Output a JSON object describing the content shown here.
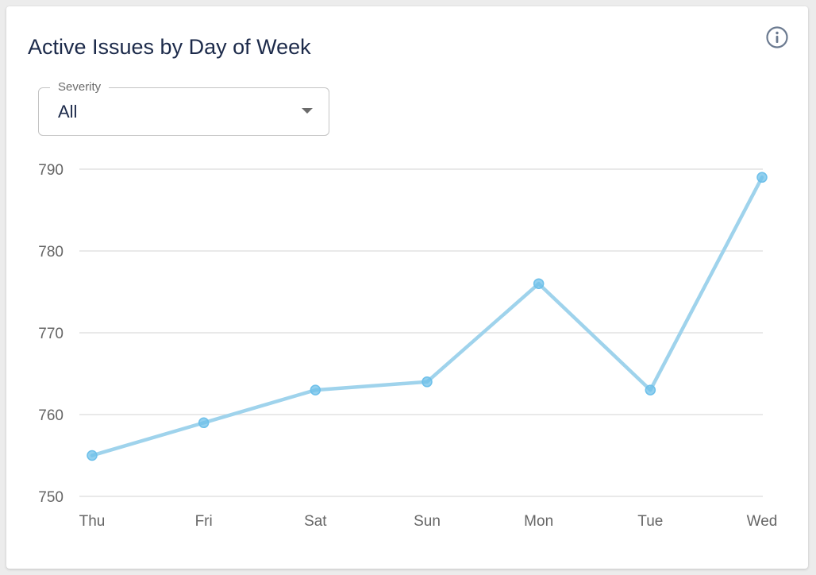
{
  "card": {
    "title": "Active Issues by Day of Week",
    "info_icon": "info-icon"
  },
  "filter": {
    "label": "Severity",
    "value": "All"
  },
  "colors": {
    "line": "#9fd3ec",
    "point": "#6ec0ea",
    "grid": "#e2e2e2",
    "title": "#1c2a4a"
  },
  "chart_data": {
    "type": "line",
    "title": "Active Issues by Day of Week",
    "categories": [
      "Thu",
      "Fri",
      "Sat",
      "Sun",
      "Mon",
      "Tue",
      "Wed"
    ],
    "values": [
      755,
      759,
      763,
      764,
      776,
      763,
      789
    ],
    "ylim": [
      750,
      790
    ],
    "yticks": [
      750,
      760,
      770,
      780,
      790
    ],
    "grid": true,
    "xlabel": "",
    "ylabel": ""
  }
}
